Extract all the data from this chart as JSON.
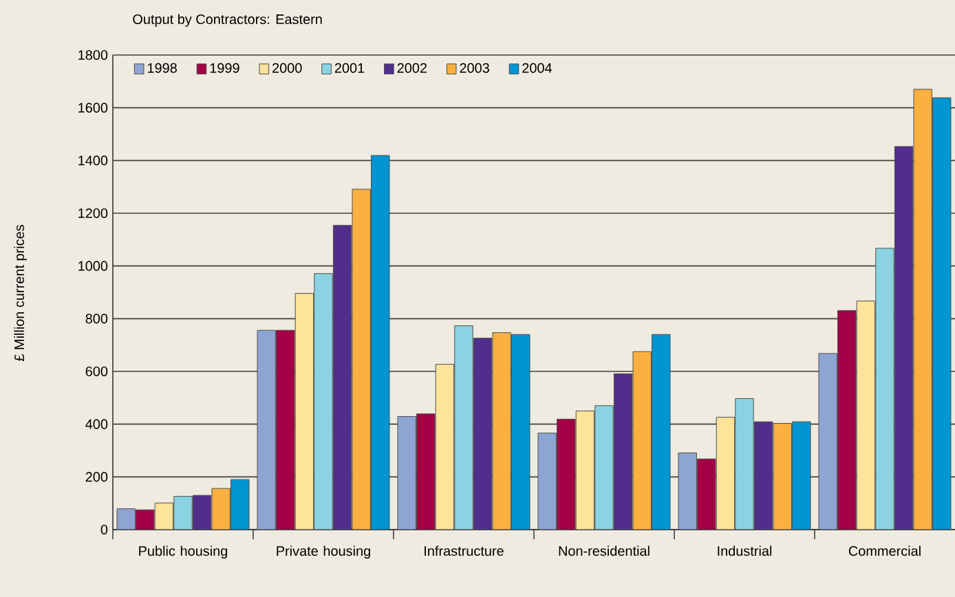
{
  "chart_data": {
    "type": "bar",
    "title": "Output by Contractors: Eastern",
    "ylabel": "£ Million current prices",
    "categories": [
      "Public housing",
      "Private housing",
      "Infrastructure",
      "Non-residential",
      "Industrial",
      "Commercial"
    ],
    "series": [
      {
        "name": "1998",
        "color": "#8ea5d4",
        "values": [
          79,
          756,
          429,
          366,
          291,
          668
        ]
      },
      {
        "name": "1999",
        "color": "#a30046",
        "values": [
          75,
          756,
          439,
          419,
          268,
          831
        ]
      },
      {
        "name": "2000",
        "color": "#fee39b",
        "values": [
          101,
          896,
          627,
          450,
          426,
          867
        ]
      },
      {
        "name": "2001",
        "color": "#8bd3e3",
        "values": [
          126,
          971,
          773,
          470,
          497,
          1067
        ]
      },
      {
        "name": "2002",
        "color": "#512d8c",
        "values": [
          130,
          1154,
          726,
          591,
          409,
          1453
        ]
      },
      {
        "name": "2003",
        "color": "#fbb040",
        "values": [
          156,
          1291,
          747,
          675,
          403,
          1670
        ]
      },
      {
        "name": "2004",
        "color": "#0095d3",
        "values": [
          190,
          1419,
          740,
          740,
          409,
          1638
        ]
      }
    ],
    "ylim": [
      0,
      1800
    ],
    "yticks": [
      0,
      200,
      400,
      600,
      800,
      1000,
      1200,
      1400,
      1600,
      1800
    ],
    "grid": "y",
    "legend": "top"
  }
}
